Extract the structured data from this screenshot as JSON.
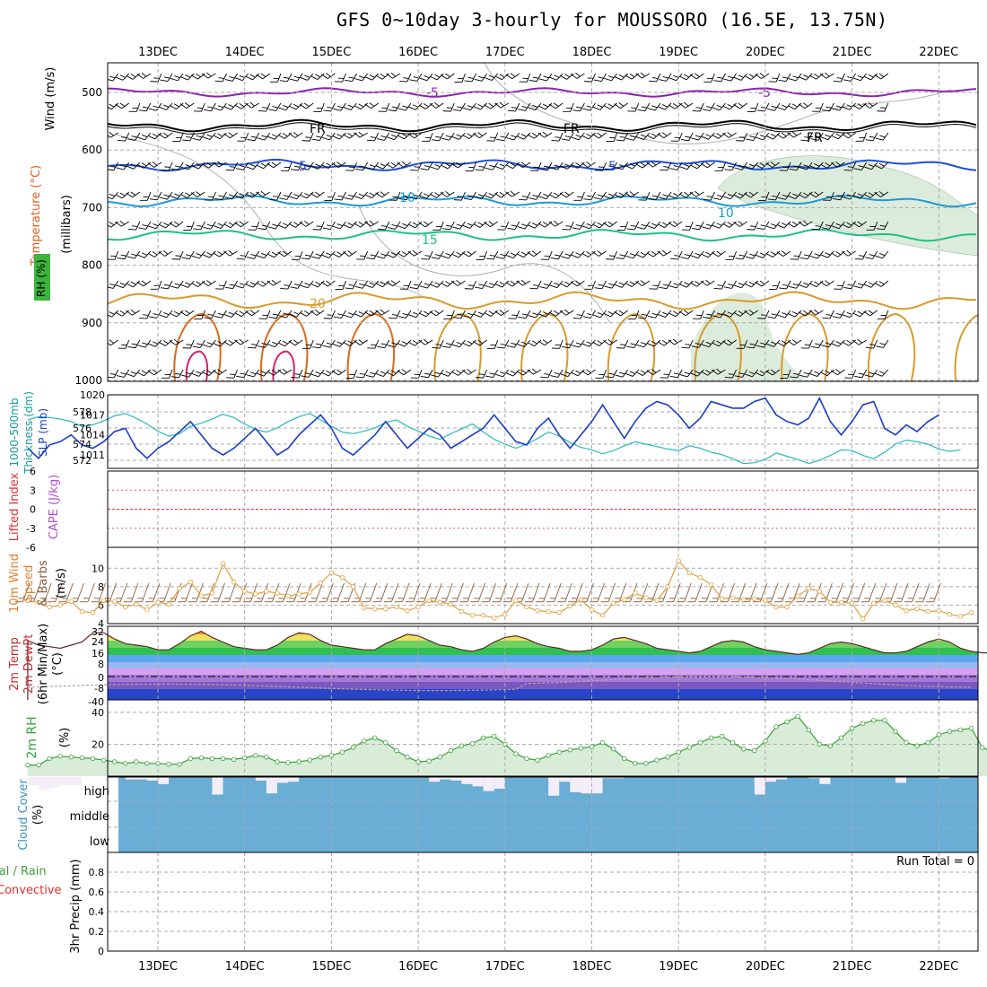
{
  "title": "GFS 0~10day 3-hourly for MOUSSORO (16.5E, 13.75N)",
  "days": [
    "13DEC",
    "14DEC",
    "15DEC",
    "16DEC",
    "17DEC",
    "18DEC",
    "19DEC",
    "20DEC",
    "21DEC",
    "22DEC"
  ],
  "colors": {
    "wind_barb": "#000000",
    "rh_fill": "#9cc89c",
    "t_minus5": "#8b22b0",
    "t_freezing": "#000000",
    "t_5": "#1f4fd6",
    "t_10": "#1c9ad8",
    "t_15": "#1fbf8a",
    "t_20": "#d89a2a",
    "t_25": "#d86a1a",
    "t_30": "#d8206a",
    "thickness": "#28b8c0",
    "slp": "#1c3cc8",
    "cape": "#b04fd0",
    "lifted_index": "#e03030",
    "wind_speed": "#e0a040",
    "barbs_10m": "#8a6040",
    "rh2m": "#3aa03a",
    "cloud": "#6aaed6",
    "cloud_gap": "#f4eef8"
  },
  "panels": {
    "upper_air": {
      "labels": [
        "Wind (m/s)",
        "Temperature (°C)",
        "RH (%)",
        "(millibars)"
      ],
      "levels": [
        500,
        600,
        700,
        800,
        900,
        1000
      ],
      "contour_labels": [
        "-5",
        "FR",
        "5",
        "10",
        "15",
        "20",
        "10"
      ]
    },
    "pressure": {
      "labels": [
        "1000-500mb",
        "Thickness (dm)",
        "SLP (mb)"
      ],
      "thickness_ticks": [
        572,
        574,
        576,
        578
      ],
      "slp_ticks": [
        1011,
        1014,
        1017,
        1020
      ]
    },
    "stability": {
      "labels": [
        "Lifted Index",
        "CAPE (J/kg)"
      ],
      "ticks": [
        "6",
        "3",
        "0",
        "-3",
        "-6"
      ]
    },
    "wind10m": {
      "labels": [
        "10m Wind",
        "Speed",
        "& Barbs",
        "(m/s)"
      ],
      "ticks": [
        4,
        6,
        8,
        10
      ]
    },
    "temp2m": {
      "labels": [
        "2m Temp",
        "2m DewPt",
        "(6hr Min/Max)",
        "(°C)"
      ],
      "ticks": [
        "32",
        "24",
        "16",
        "8",
        "0",
        "-8",
        "-40"
      ]
    },
    "rh2m": {
      "labels": [
        "2m RH",
        "(%)"
      ],
      "ticks": [
        "40",
        "20"
      ]
    },
    "cloud": {
      "labels": [
        "Cloud Cover",
        "(%)"
      ],
      "layers": [
        "high",
        "middle",
        "low"
      ]
    },
    "precip": {
      "labels": [
        "Total / Rain",
        "Convective",
        "3hr Precip (mm)"
      ],
      "ticks": [
        "0",
        "0.2",
        "0.4",
        "0.6",
        "0.8"
      ],
      "run_total": "Run Total = 0"
    }
  },
  "chart_data": [
    {
      "type": "line",
      "name": "SLP (mb)",
      "x_unit": "3-hourly step from 12DEC 12Z",
      "ylim": [
        1009,
        1020
      ],
      "values": [
        1012,
        1010.5,
        1012.5,
        1013,
        1014,
        1012.5,
        1012,
        1013,
        1014.5,
        1015,
        1012,
        1010.5,
        1012,
        1013,
        1014.5,
        1016,
        1014,
        1012,
        1011,
        1012,
        1013.5,
        1015,
        1013,
        1011,
        1012,
        1014,
        1015.5,
        1017,
        1015,
        1012,
        1011,
        1012.5,
        1014,
        1016,
        1014,
        1012,
        1013.5,
        1015,
        1014,
        1012,
        1013,
        1014,
        1015,
        1017,
        1015,
        1013,
        1012.5,
        1015,
        1016.5,
        1014,
        1012,
        1014,
        1016,
        1018.5,
        1016,
        1013.5,
        1016,
        1018,
        1019,
        1018.5,
        1017,
        1015,
        1016.5,
        1019,
        1018.5,
        1018,
        1018,
        1019,
        1019.5,
        1017,
        1016,
        1015.5,
        1016.5,
        1019.5,
        1016,
        1014,
        1016,
        1018.5,
        1019,
        1015,
        1014,
        1015.5,
        1014.5,
        1016,
        1017
      ]
    },
    {
      "type": "line",
      "name": "1000-500mb Thickness (dm)",
      "x_unit": "3-hourly step from 12DEC 12Z",
      "ylim": [
        571,
        579
      ],
      "values": [
        577,
        577.4,
        577.3,
        577.1,
        576.8,
        576.2,
        576.4,
        576.9,
        577.5,
        577.8,
        577.2,
        576.5,
        575.6,
        575,
        575.3,
        576.2,
        576.6,
        577.1,
        577.7,
        577.3,
        576.5,
        575.8,
        575.5,
        576,
        576.8,
        577.4,
        577.8,
        577,
        576.2,
        575.5,
        575.3,
        575.6,
        576,
        576.7,
        577,
        576.2,
        575.6,
        575,
        574.6,
        575.3,
        575.9,
        576.5,
        575.5,
        574.6,
        574,
        573.5,
        574,
        574.7,
        575.5,
        575,
        574.2,
        573.6,
        573.3,
        572.8,
        573.2,
        573.8,
        574.3,
        574,
        573.7,
        573.4,
        573.2,
        573.8,
        573.5,
        573,
        572.7,
        572.2,
        571.6,
        571.7,
        572.1,
        572.9,
        572.5,
        572.1,
        571.6,
        572,
        572.6,
        573.3,
        573.2,
        572.6,
        572.2,
        573,
        574,
        574.5,
        574.3,
        574,
        573.4,
        573.1,
        573.3
      ]
    },
    {
      "type": "line",
      "name": "10m Wind Speed (m/s)",
      "x_unit": "3-hourly step from 12DEC 12Z",
      "ylim": [
        4,
        11
      ],
      "values": [
        6.5,
        6.3,
        5.8,
        6,
        6.4,
        5.3,
        5.2,
        6.5,
        6.4,
        5.8,
        6.1,
        5.5,
        6.3,
        6.1,
        7.8,
        8.5,
        7,
        7.3,
        10.5,
        8.5,
        7.5,
        7.2,
        7.5,
        7.3,
        7,
        7.2,
        7.4,
        8.4,
        9.5,
        9,
        8,
        5.7,
        5.6,
        5.6,
        5.8,
        5.4,
        5.8,
        6.5,
        6.3,
        6.1,
        5.3,
        4.9,
        4.9,
        4.6,
        5,
        6.5,
        5.8,
        5.4,
        5.3,
        5.2,
        5.9,
        6.6,
        5.5,
        4.9,
        6.2,
        6.6,
        7.3,
        6.8,
        6.5,
        8,
        10.8,
        9.5,
        9,
        8.2,
        6.7,
        6.8,
        6.6,
        6.7,
        6.5,
        5.8,
        5.8,
        7,
        7.8,
        7.5,
        6.3,
        6.3,
        6.2,
        4.5,
        6.2,
        6.5,
        6,
        5.4,
        5.6,
        5.3,
        5.4,
        5,
        4.8,
        5.2
      ]
    },
    {
      "type": "area",
      "name": "2m Temp (°C)",
      "x_unit": "3-hourly step from 12DEC 12Z",
      "ylim": [
        -40,
        36
      ],
      "values": [
        25,
        22,
        21,
        20,
        22,
        24,
        30,
        30,
        26,
        23,
        22,
        21,
        19,
        19,
        23,
        28,
        31,
        27,
        24,
        21,
        20,
        19,
        19,
        22,
        27,
        30,
        29,
        25,
        22,
        21,
        20,
        19,
        19,
        23,
        26,
        29,
        28,
        25,
        22,
        21,
        19,
        18,
        20,
        24,
        27,
        28,
        26,
        23,
        21,
        20,
        18,
        18,
        19,
        22,
        26,
        27,
        25,
        23,
        20,
        19,
        18,
        17,
        18,
        21,
        24,
        25,
        24,
        21,
        19,
        18,
        17,
        16,
        17,
        20,
        23,
        24,
        23,
        21,
        19,
        17,
        17,
        18,
        21,
        24,
        26,
        24,
        20,
        18,
        17,
        17
      ]
    },
    {
      "type": "area",
      "name": "2m RH (%)",
      "x_unit": "3-hourly step from 12DEC 12Z",
      "ylim": [
        0,
        45
      ],
      "values": [
        7,
        7,
        11,
        12.5,
        12,
        11.5,
        11,
        10,
        9,
        8,
        9,
        8,
        8,
        7.5,
        7.5,
        11,
        11.5,
        11,
        11,
        10.5,
        11.5,
        13,
        12,
        9,
        8.5,
        9,
        10,
        12,
        13,
        15,
        18,
        22,
        24,
        21,
        16,
        12,
        9,
        9.5,
        12,
        16,
        19,
        20.5,
        24,
        25,
        20,
        14,
        11,
        10,
        13,
        15,
        16.5,
        17.5,
        18.5,
        21,
        17,
        11,
        8,
        8,
        10,
        12,
        15,
        18,
        21,
        24,
        25,
        21,
        17,
        16,
        22,
        31,
        34,
        37.5,
        29,
        20,
        19,
        24,
        30,
        33,
        35,
        35,
        28,
        21,
        19,
        21,
        26,
        28,
        29,
        30,
        18,
        15,
        15,
        18,
        17.5,
        17.5,
        18,
        20
      ]
    },
    {
      "type": "bar",
      "name": "High Cloud Cover (%)",
      "x_unit": "3-hourly step from 12DEC 12Z",
      "values": [
        35,
        55,
        45,
        35,
        35,
        0,
        0,
        0,
        0,
        10,
        10,
        15,
        30,
        0,
        0,
        0,
        0,
        75,
        0,
        0,
        0,
        15,
        70,
        25,
        20,
        0,
        0,
        0,
        0,
        0,
        0,
        0,
        0,
        0,
        0,
        0,
        0,
        20,
        10,
        15,
        30,
        40,
        60,
        50,
        0,
        0,
        0,
        0,
        80,
        20,
        65,
        70,
        70,
        5,
        5,
        0,
        0,
        0,
        0,
        0,
        0,
        0,
        0,
        0,
        0,
        0,
        0,
        75,
        20,
        10,
        0,
        0,
        5,
        30,
        0,
        0,
        0,
        0,
        0,
        0,
        25,
        0,
        0,
        0,
        5,
        0,
        0,
        0,
        0
      ]
    },
    {
      "type": "bar",
      "name": "3hr Precip (mm)",
      "ylim": [
        0,
        1
      ],
      "values": []
    }
  ]
}
